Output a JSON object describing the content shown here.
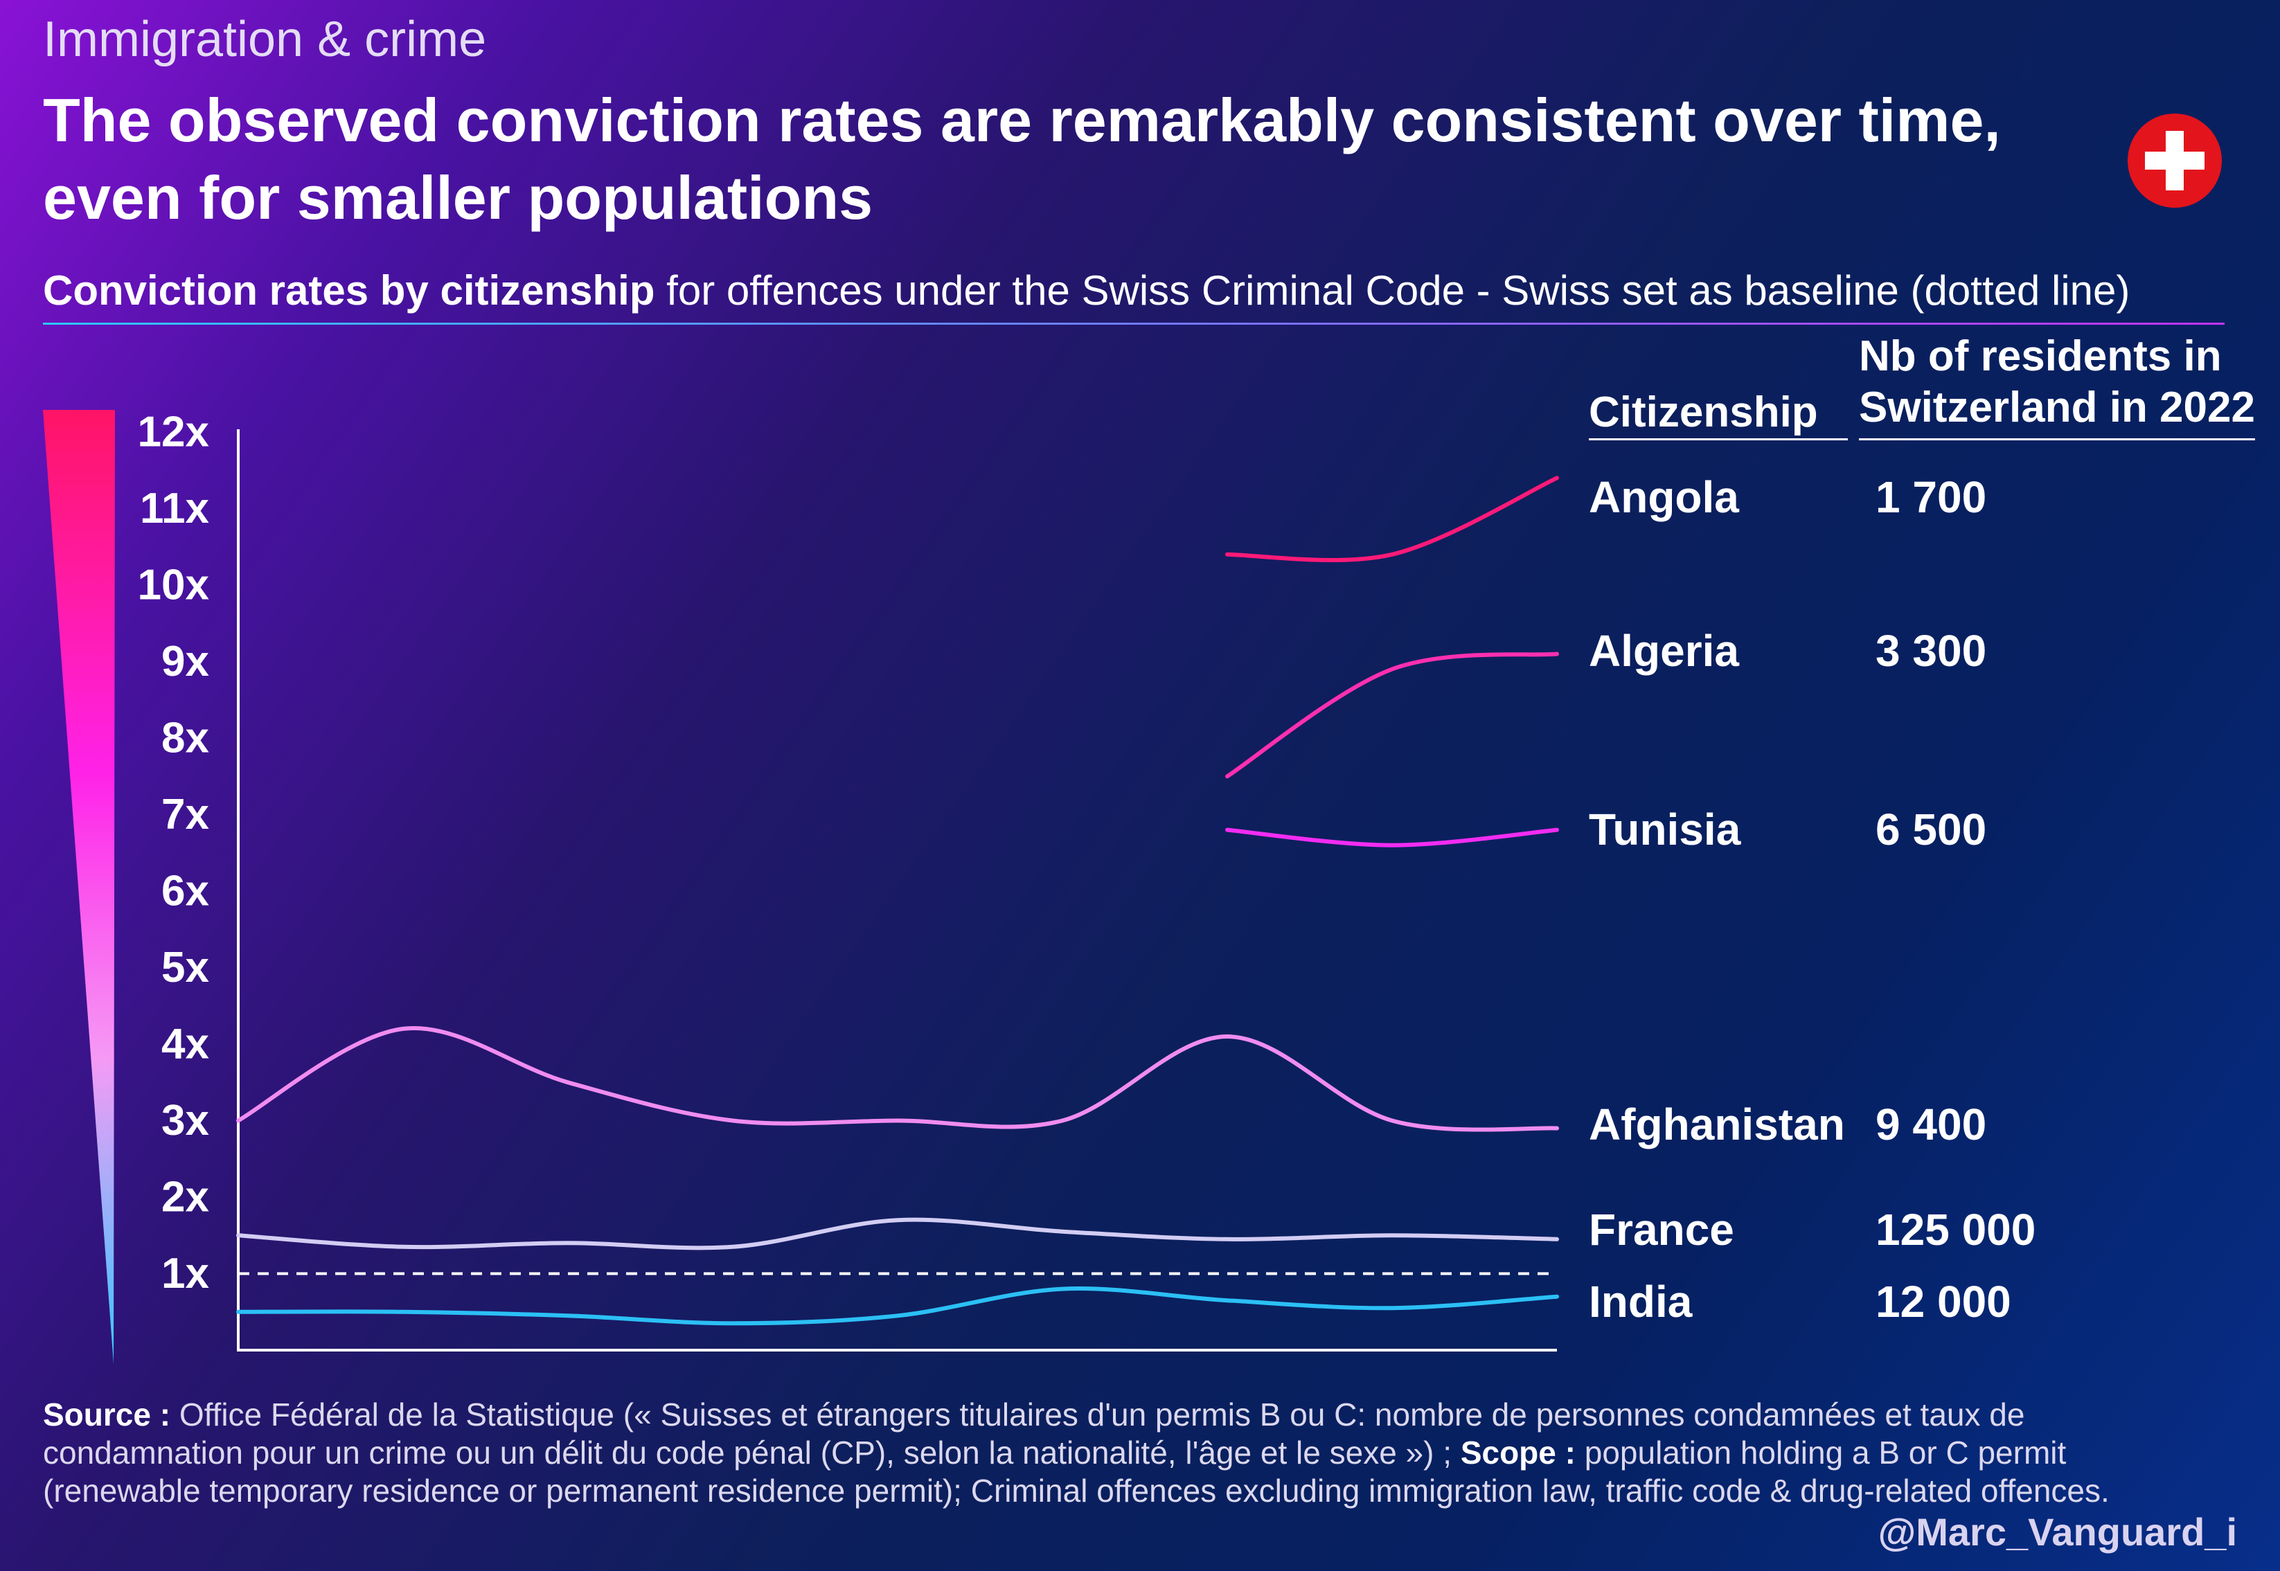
{
  "header": {
    "kicker": "Immigration & crime",
    "headline": "The observed conviction rates are remarkably consistent over time, even for smaller populations",
    "subtitle_bold": "Conviction rates by citizenship",
    "subtitle_rest": " for offences under the Swiss Criminal Code - Swiss set as baseline (dotted line)"
  },
  "flag": {
    "name": "swiss-flag-icon",
    "color": "#e3141c"
  },
  "table_headers": {
    "citizenship": "Citizenship",
    "residents": "Nb of residents in Switzerland in 2022"
  },
  "chart_data": {
    "type": "line",
    "y_tick_labels": [
      "12x",
      "11x",
      "10x",
      "9x",
      "8x",
      "7x",
      "6x",
      "5x",
      "4x",
      "3x",
      "2x",
      "1x"
    ],
    "ylim": [
      0,
      12
    ],
    "x": [
      1,
      2,
      3,
      4,
      5,
      6,
      7,
      8,
      9
    ],
    "baseline": {
      "value": 1,
      "style": "dotted"
    },
    "series": [
      {
        "name": "Angola",
        "residents": "1 700",
        "color": "#ff1a78",
        "values": [
          null,
          null,
          null,
          null,
          null,
          null,
          10.4,
          10.4,
          11.4
        ]
      },
      {
        "name": "Algeria",
        "residents": "3 300",
        "color": "#ff2fb0",
        "values": [
          null,
          null,
          null,
          null,
          null,
          null,
          7.5,
          8.9,
          9.1
        ]
      },
      {
        "name": "Tunisia",
        "residents": "6 500",
        "color": "#f22cf2",
        "values": [
          null,
          null,
          null,
          null,
          null,
          null,
          6.8,
          6.6,
          6.8
        ]
      },
      {
        "name": "Afghanistan",
        "residents": "9 400",
        "color": "#f08cf0",
        "values": [
          3.0,
          4.2,
          3.5,
          3.0,
          3.0,
          3.0,
          4.1,
          3.0,
          2.9
        ]
      },
      {
        "name": "France",
        "residents": "125 000",
        "color": "#d3cdf4",
        "values": [
          1.5,
          1.35,
          1.4,
          1.35,
          1.7,
          1.55,
          1.45,
          1.5,
          1.45
        ]
      },
      {
        "name": "India",
        "residents": "12 000",
        "color": "#2bc0f5",
        "values": [
          0.5,
          0.5,
          0.45,
          0.35,
          0.45,
          0.8,
          0.65,
          0.55,
          0.7
        ]
      }
    ]
  },
  "footer": {
    "source_label": "Source :",
    "source_text": " Office Fédéral de la Statistique (« Suisses et étrangers titulaires d'un permis B ou C: nombre de personnes condamnées et taux de condamnation pour un crime ou un délit du code pénal (CP), selon la nationalité, l'âge et le sexe ») ; ",
    "scope_label": "Scope :",
    "scope_text": " population holding a B or C permit (renewable temporary residence or permanent residence permit); Criminal offences excluding immigration law, traffic code & drug-related offences.",
    "credit": "@Marc_Vanguard_i"
  }
}
